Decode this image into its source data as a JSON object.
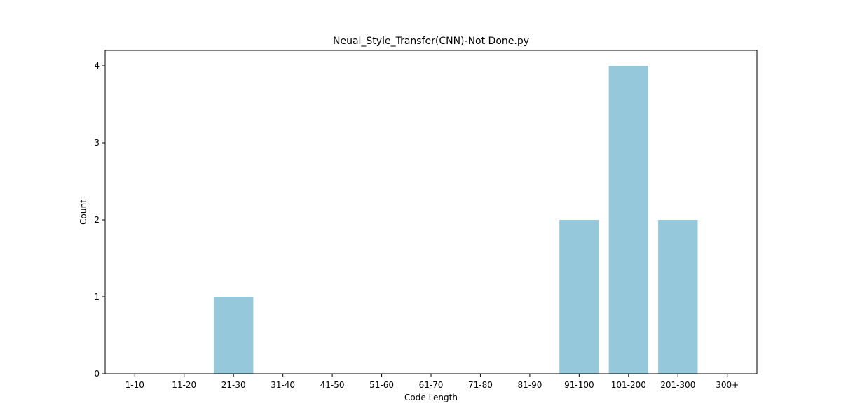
{
  "chart_data": {
    "type": "bar",
    "title": "Neual_Style_Transfer(CNN)-Not Done.py",
    "xlabel": "Code Length",
    "ylabel": "Count",
    "categories": [
      "1-10",
      "11-20",
      "21-30",
      "31-40",
      "41-50",
      "51-60",
      "61-70",
      "71-80",
      "81-90",
      "91-100",
      "101-200",
      "201-300",
      "300+"
    ],
    "values": [
      0,
      0,
      1,
      0,
      0,
      0,
      0,
      0,
      0,
      2,
      4,
      2,
      0
    ],
    "ylim": [
      0,
      4.2
    ],
    "yticks": [
      0,
      1,
      2,
      3,
      4
    ],
    "grid": false,
    "colors": {
      "bar": "#96c8dc",
      "axis": "#000000"
    }
  }
}
